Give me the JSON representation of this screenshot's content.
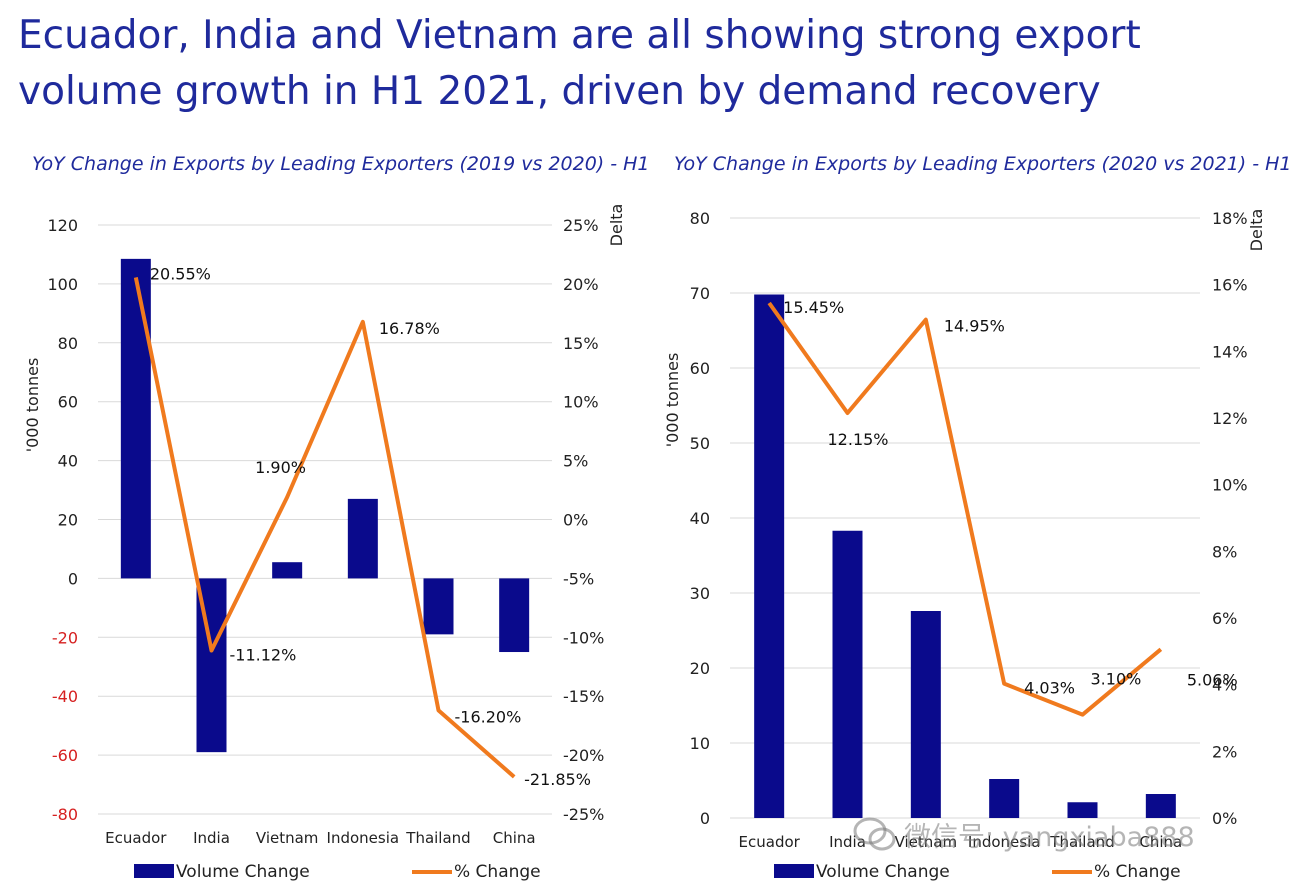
{
  "headline": "Ecuador, India and Vietnam are all showing strong export volume growth in H1 2021, driven by demand recovery",
  "watermark_text": "微信号: yangxiaba888",
  "colors": {
    "bar": "#0a0a8c",
    "line": "#f07a1e",
    "negative_tick": "#d62020",
    "title": "#1f2a9c"
  },
  "chart_data": [
    {
      "type": "bar",
      "title": "YoY Change in Exports by Leading Exporters (2019 vs 2020) - H1",
      "categories": [
        "Ecuador",
        "India",
        "Vietnam",
        "Indonesia",
        "Thailand",
        "China"
      ],
      "ylabel": "'000 tonnes",
      "y2label": "Delta",
      "ylim": [
        -80,
        120
      ],
      "y2lim": [
        -25,
        25
      ],
      "y_ticks": [
        "120",
        "100",
        "80",
        "60",
        "40",
        "20",
        "0",
        "-20",
        "-40",
        "-60",
        "-80"
      ],
      "y2_ticks": [
        "25%",
        "20%",
        "15%",
        "10%",
        "5%",
        "0%",
        "-5%",
        "-10%",
        "-15%",
        "-20%",
        "-25%"
      ],
      "grid": true,
      "legend": "bottom",
      "series": [
        {
          "name": "Volume Change",
          "type": "bar",
          "axis": "left",
          "values": [
            108.5,
            -59,
            5.5,
            27,
            -19,
            -25
          ]
        },
        {
          "name": "% Change",
          "type": "line",
          "axis": "right",
          "values": [
            20.55,
            -11.12,
            1.9,
            16.78,
            -16.2,
            -21.85
          ],
          "labels": [
            "20.55%",
            "-11.12%",
            "1.90%",
            "16.78%",
            "-16.20%",
            "-21.85%"
          ]
        }
      ]
    },
    {
      "type": "bar",
      "title": "YoY Change in Exports by Leading Exporters (2020 vs 2021) - H1",
      "categories": [
        "Ecuador",
        "India",
        "Vietnam",
        "Indonesia",
        "Thailand",
        "China"
      ],
      "ylabel": "'000 tonnes",
      "y2label": "Delta",
      "ylim": [
        0,
        80
      ],
      "y2lim": [
        0,
        18
      ],
      "y_ticks": [
        "80",
        "70",
        "60",
        "50",
        "40",
        "30",
        "20",
        "10",
        "0"
      ],
      "y2_ticks": [
        "18%",
        "16%",
        "14%",
        "12%",
        "10%",
        "8%",
        "6%",
        "4%",
        "2%",
        "0%"
      ],
      "grid": true,
      "legend": "bottom",
      "series": [
        {
          "name": "Volume Change",
          "type": "bar",
          "axis": "left",
          "values": [
            69.8,
            38.3,
            27.6,
            5.2,
            2.1,
            3.2
          ]
        },
        {
          "name": "% Change",
          "type": "line",
          "axis": "right",
          "values": [
            15.45,
            12.15,
            14.95,
            4.03,
            3.1,
            5.06
          ],
          "labels": [
            "15.45%",
            "12.15%",
            "14.95%",
            "4.03%",
            "3.10%",
            "5.06%"
          ]
        }
      ]
    }
  ]
}
